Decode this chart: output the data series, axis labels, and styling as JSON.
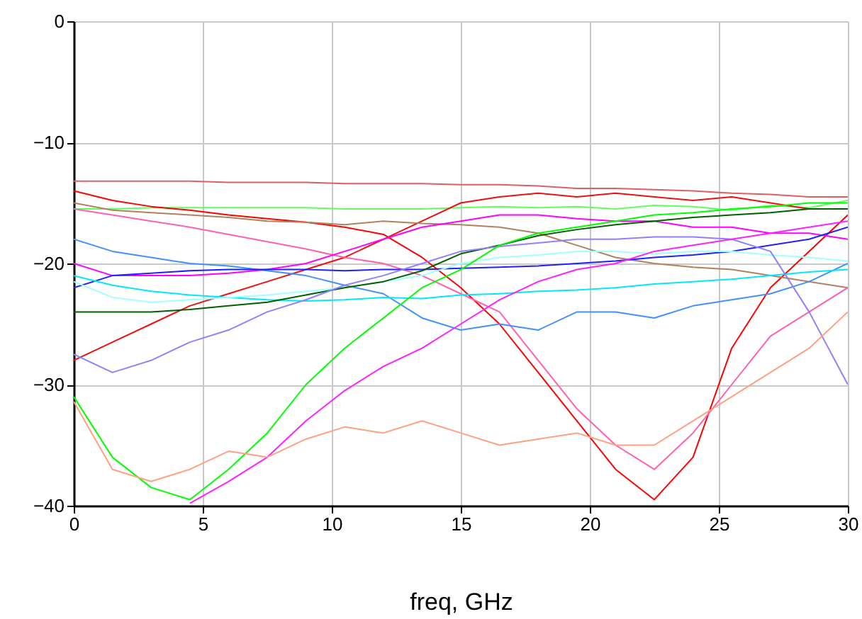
{
  "chart_data": {
    "type": "line",
    "xlabel": "freq, GHz",
    "xlim": [
      0,
      30
    ],
    "xticks": [
      0,
      5,
      10,
      15,
      20,
      25,
      30
    ],
    "ylim": [
      -40,
      0
    ],
    "yticks": [
      -40,
      -30,
      -20,
      -10,
      0
    ],
    "grid": true,
    "x": [
      0,
      1.5,
      3,
      4.5,
      6,
      7.5,
      9,
      10.5,
      12,
      13.5,
      15,
      16.5,
      18,
      19.5,
      21,
      22.5,
      24,
      25.5,
      27,
      28.5,
      30
    ],
    "series": [
      {
        "color": "#e06060",
        "values": [
          -13.2,
          -13.2,
          -13.2,
          -13.2,
          -13.3,
          -13.3,
          -13.3,
          -13.4,
          -13.4,
          -13.4,
          -13.5,
          -13.5,
          -13.6,
          -13.8,
          -13.8,
          -13.9,
          -14,
          -14.2,
          -14.3,
          -14.5,
          -14.5
        ]
      },
      {
        "color": "#60ff60",
        "values": [
          -15.5,
          -15.5,
          -15.4,
          -15.4,
          -15.4,
          -15.4,
          -15.4,
          -15.5,
          -15.5,
          -15.5,
          -15.4,
          -15.3,
          -15.4,
          -15.3,
          -15.5,
          -15.2,
          -15.3,
          -15.6,
          -15.2,
          -15.4,
          -14.8
        ]
      },
      {
        "color": "#ff0000",
        "values": [
          -14,
          -14.8,
          -15.3,
          -15.6,
          -16,
          -16.3,
          -16.6,
          -17,
          -17.6,
          -19.5,
          -22,
          -25,
          -29,
          -33,
          -37,
          -39.5,
          -36,
          -27,
          -22,
          -19,
          -16
        ]
      },
      {
        "color": "#ee1010",
        "values": [
          -28,
          -26.5,
          -25,
          -23.5,
          -22.5,
          -21.5,
          -20.5,
          -19.5,
          -18,
          -16.5,
          -15,
          -14.5,
          -14.2,
          -14.5,
          -14.2,
          -14.5,
          -14.8,
          -14.5,
          -15,
          -15.5,
          -15.5
        ]
      },
      {
        "color": "#b08060",
        "values": [
          -15,
          -15.6,
          -15.8,
          -16,
          -16.2,
          -16.5,
          -16.6,
          -16.8,
          -16.5,
          -16.7,
          -16.8,
          -17,
          -17.5,
          -18.5,
          -19.5,
          -20,
          -20.3,
          -20.5,
          -21,
          -21.5,
          -22
        ]
      },
      {
        "color": "#ff60b0",
        "values": [
          -15.5,
          -16,
          -16.5,
          -17,
          -17.6,
          -18.2,
          -18.8,
          -19.5,
          -20,
          -21,
          -22.5,
          -24,
          -28,
          -32,
          -35,
          -37,
          -34,
          -30,
          -26,
          -24,
          -22
        ]
      },
      {
        "color": "#4090ff",
        "values": [
          -18,
          -19,
          -19.5,
          -20,
          -20.2,
          -20.6,
          -21,
          -21.8,
          -22.5,
          -24.5,
          -25.5,
          -25,
          -25.5,
          -24,
          -24,
          -24.5,
          -23.5,
          -23,
          -22.5,
          -21.5,
          -20
        ]
      },
      {
        "color": "#ff00ff",
        "values": [
          -20,
          -21,
          -21,
          -21,
          -20.8,
          -20.5,
          -20,
          -19,
          -18,
          -17,
          -16.5,
          -16,
          -16,
          -16.3,
          -16.5,
          -16.5,
          -17,
          -17,
          -17.5,
          -17.5,
          -18
        ]
      },
      {
        "color": "#2020ff",
        "values": [
          -22,
          -21,
          -20.8,
          -20.6,
          -20.5,
          -20.5,
          -20.5,
          -20.6,
          -20.5,
          -20.5,
          -20.4,
          -20.3,
          -20.2,
          -20,
          -19.8,
          -19.5,
          -19.3,
          -19,
          -18.5,
          -18,
          -17
        ]
      },
      {
        "color": "#00e8ff",
        "values": [
          -21,
          -21.8,
          -22.3,
          -22.6,
          -22.8,
          -23,
          -23.1,
          -23,
          -22.8,
          -22.9,
          -22.6,
          -22.5,
          -22.3,
          -22.2,
          -22,
          -21.7,
          -21.5,
          -21.3,
          -21,
          -20.7,
          -20.5
        ]
      },
      {
        "color": "#a0ffff",
        "values": [
          -21.5,
          -22.8,
          -23.2,
          -23,
          -22.8,
          -22.6,
          -22.3,
          -22,
          -21.5,
          -21,
          -20,
          -19.5,
          -19.3,
          -19,
          -19,
          -19.2,
          -19,
          -19,
          -19.3,
          -19.5,
          -19.8
        ]
      },
      {
        "color": "#006000",
        "values": [
          -24,
          -24,
          -24,
          -23.8,
          -23.5,
          -23.2,
          -22.6,
          -22,
          -21.5,
          -20.6,
          -19.2,
          -18.5,
          -17.7,
          -17.2,
          -16.8,
          -16.5,
          -16.2,
          -16,
          -15.8,
          -15.5,
          -15.5
        ]
      },
      {
        "color": "#9080ff",
        "values": [
          -27.5,
          -29,
          -28,
          -26.5,
          -25.5,
          -24,
          -23,
          -21.8,
          -21,
          -20,
          -19,
          -18.6,
          -18.3,
          -18,
          -18,
          -17.8,
          -17.8,
          -18,
          -19,
          -24,
          -30
        ]
      },
      {
        "color": "#00ff00",
        "values": [
          -31,
          -36,
          -38.5,
          -39.5,
          -37,
          -34,
          -30,
          -27,
          -24.5,
          -22,
          -20.5,
          -18.5,
          -17.5,
          -17,
          -16.5,
          -16,
          -15.8,
          -15.5,
          -15.3,
          -15,
          -15
        ]
      },
      {
        "color": "#ff20ff",
        "values": [
          null,
          null,
          null,
          -39.8,
          -38,
          -36,
          -33,
          -30.5,
          -28.5,
          -27,
          -25,
          -23,
          -21.5,
          -20.5,
          -20,
          -19,
          -18.5,
          -18,
          -17.5,
          -17,
          -16.5
        ]
      },
      {
        "color": "#ffa080",
        "values": [
          -31.4,
          -37,
          -38,
          -37,
          -35.5,
          -36,
          -34.5,
          -33.5,
          -34,
          -33,
          -34,
          -35,
          -34.5,
          -34,
          -35,
          -35,
          -33,
          -31,
          -29,
          -27,
          -24
        ]
      }
    ]
  }
}
